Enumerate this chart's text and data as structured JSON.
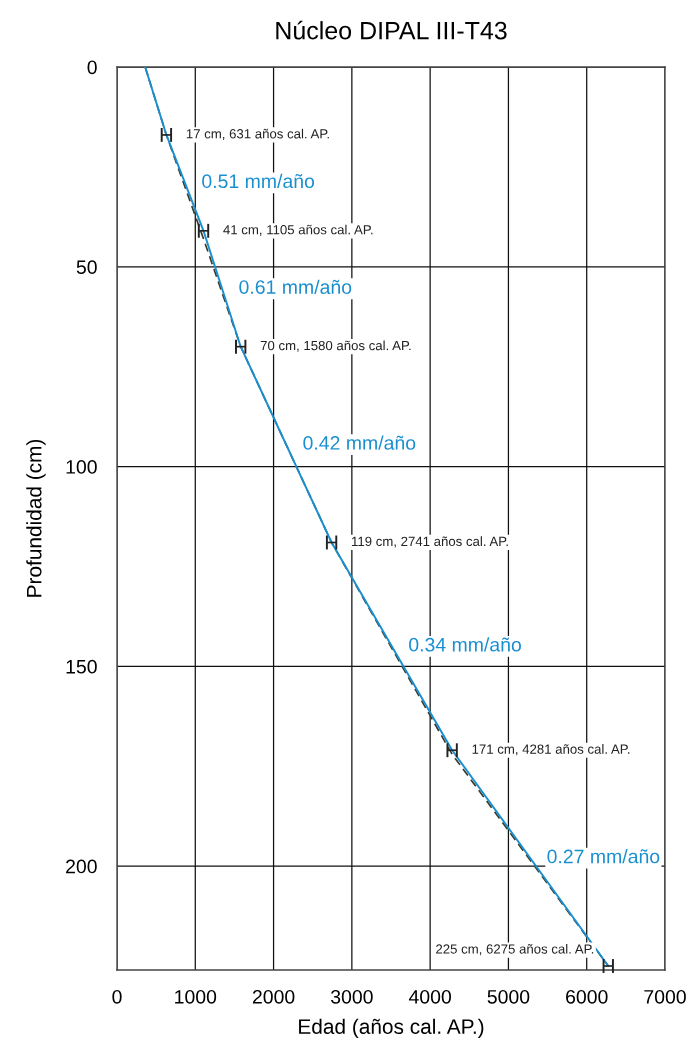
{
  "chart_data": {
    "type": "line",
    "title": "Núcleo DIPAL III-T43",
    "xlabel": "Edad (años cal. AP.)",
    "ylabel": "Profundidad (cm)",
    "xlim": [
      0,
      7000
    ],
    "xticks": [
      0,
      1000,
      2000,
      3000,
      4000,
      5000,
      6000,
      7000
    ],
    "ylim": [
      226,
      0
    ],
    "yticks": [
      0,
      50,
      100,
      150,
      200
    ],
    "grid": true,
    "marker": "none",
    "series": [
      {
        "color": "#1a8fd0",
        "line_style": "solid",
        "x": [
          360,
          631,
          1105,
          1580,
          2741,
          4281,
          6275
        ],
        "values": [
          0,
          17,
          41,
          70,
          119,
          171,
          225
        ],
        "xerrors": [
          null,
          60,
          60,
          60,
          60,
          60,
          60
        ],
        "value_labels": [
          null,
          "17 cm, 631 años cal. AP.",
          "41 cm, 1105 años cal. AP.",
          "70 cm, 1580 años cal. AP.",
          "119 cm, 2741 años cal. AP.",
          "171 cm, 4281 años cal. AP.",
          "225 cm, 6275 años cal. AP."
        ]
      },
      {
        "color": "#3a3a2a",
        "line_style": "dashed",
        "x": [
          360,
          631,
          1105,
          1580,
          2741,
          4281,
          6275
        ],
        "values": [
          0,
          17,
          43,
          70,
          119,
          172,
          225
        ]
      }
    ],
    "annotations": [
      "0.51 mm/año",
      "0.61 mm/año",
      "0.42 mm/año",
      "0.34 mm/año",
      "0.27 mm/año"
    ]
  }
}
